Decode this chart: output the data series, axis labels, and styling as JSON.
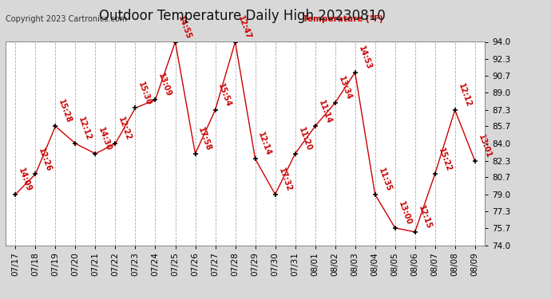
{
  "title": "Outdoor Temperature Daily High 20230810",
  "ylabel": "Temperature (°F)",
  "copyright": "Copyright 2023 Cartronics.com",
  "background_color": "#d8d8d8",
  "plot_bg_color": "#ffffff",
  "line_color": "#cc0000",
  "marker_color": "#000000",
  "text_color": "#cc0000",
  "grid_color": "#aaaaaa",
  "ylim": [
    74.0,
    94.0
  ],
  "yticks": [
    74.0,
    75.7,
    77.3,
    79.0,
    80.7,
    82.3,
    84.0,
    85.7,
    87.3,
    89.0,
    90.7,
    92.3,
    94.0
  ],
  "dates": [
    "07/17",
    "07/18",
    "07/19",
    "07/20",
    "07/21",
    "07/22",
    "07/23",
    "07/24",
    "07/25",
    "07/26",
    "07/27",
    "07/28",
    "07/29",
    "07/30",
    "07/31",
    "08/01",
    "08/02",
    "08/03",
    "08/04",
    "08/05",
    "08/06",
    "08/07",
    "08/08",
    "08/09"
  ],
  "values": [
    79.0,
    81.0,
    85.7,
    84.0,
    83.0,
    84.0,
    87.5,
    88.3,
    94.0,
    83.0,
    87.3,
    94.0,
    82.5,
    79.0,
    83.0,
    85.7,
    88.0,
    91.0,
    79.0,
    75.7,
    75.3,
    81.0,
    87.3,
    82.3
  ],
  "labels": [
    "14:09",
    "12:26",
    "15:28",
    "12:12",
    "14:30",
    "12:22",
    "15:30",
    "13:09",
    "14:55",
    "17:58",
    "15:54",
    "12:47",
    "12:14",
    "17:32",
    "11:20",
    "11:14",
    "13:34",
    "14:53",
    "11:35",
    "13:00",
    "12:15",
    "15:22",
    "12:12",
    "13:01"
  ],
  "title_fontsize": 12,
  "axis_fontsize": 7.5,
  "label_fontsize": 7,
  "copyright_fontsize": 7
}
